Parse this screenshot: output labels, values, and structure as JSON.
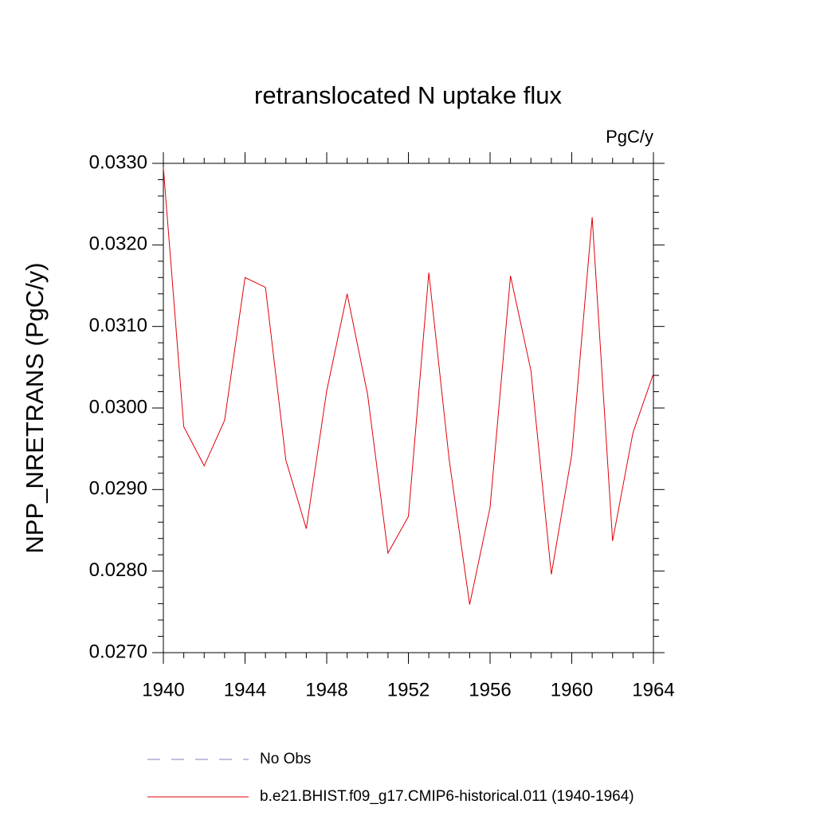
{
  "chart_data": {
    "type": "line",
    "title": "retranslocated N uptake flux",
    "units": "PgC/y",
    "y_label": "NPP_NRETRANS  (PgC/y)",
    "x": [
      1940,
      1941,
      1942,
      1943,
      1944,
      1945,
      1946,
      1947,
      1948,
      1949,
      1950,
      1951,
      1952,
      1953,
      1954,
      1955,
      1956,
      1957,
      1958,
      1959,
      1960,
      1961,
      1962,
      1963,
      1964
    ],
    "series": [
      {
        "name": "b.e21.BHIST.f09_g17.CMIP6-historical.011 (1940-1964)",
        "color": "#e0000a",
        "values": [
          0.03295,
          0.02977,
          0.02929,
          0.02985,
          0.0316,
          0.03148,
          0.02936,
          0.02852,
          0.03021,
          0.0314,
          0.03017,
          0.02822,
          0.02867,
          0.03166,
          0.02936,
          0.02759,
          0.02878,
          0.03162,
          0.03046,
          0.02796,
          0.02943,
          0.03234,
          0.02837,
          0.0297,
          0.03042
        ]
      }
    ],
    "legend": [
      {
        "name": "No Obs",
        "color": "#8080c0",
        "dash": "dashed"
      }
    ],
    "xlim": [
      1940,
      1964
    ],
    "xticks": [
      1940,
      1944,
      1948,
      1952,
      1956,
      1960,
      1964
    ],
    "ylim": [
      0.027,
      0.033
    ],
    "yticks": [
      {
        "value": 0.027,
        "label": "0.0270"
      },
      {
        "value": 0.028,
        "label": "0.0280"
      },
      {
        "value": 0.029,
        "label": "0.0290"
      },
      {
        "value": 0.03,
        "label": "0.0300"
      },
      {
        "value": 0.031,
        "label": "0.0310"
      },
      {
        "value": 0.032,
        "label": "0.0320"
      },
      {
        "value": 0.033,
        "label": "0.0330"
      }
    ]
  }
}
